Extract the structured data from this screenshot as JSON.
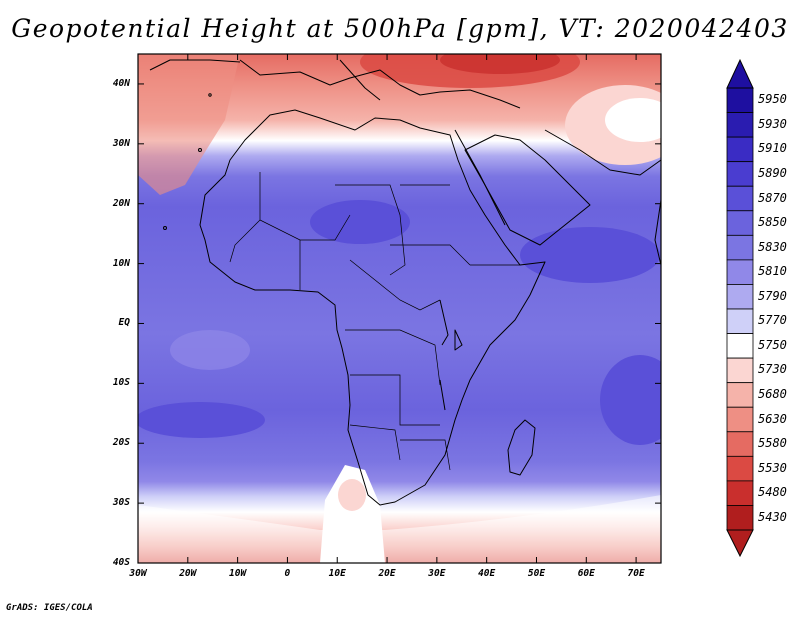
{
  "title": "Geopotential Height at 500hPa [gpm], VT: 2020042403",
  "credit": "GrADS: IGES/COLA",
  "map": {
    "variable": "Geopotential Height",
    "level": "500hPa",
    "units": "gpm",
    "valid_time": "2020042403",
    "lon_range": [
      -30,
      75
    ],
    "lat_range": [
      -40,
      45
    ],
    "lat_ticks": [
      "40N",
      "30N",
      "20N",
      "10N",
      "EQ",
      "10S",
      "20S",
      "30S",
      "40S"
    ],
    "lat_values": [
      40,
      30,
      20,
      10,
      0,
      -10,
      -20,
      -30,
      -40
    ],
    "lon_ticks": [
      "30W",
      "20W",
      "10W",
      "0",
      "10E",
      "20E",
      "30E",
      "40E",
      "50E",
      "60E",
      "70E"
    ],
    "lon_values": [
      -30,
      -20,
      -10,
      0,
      10,
      20,
      30,
      40,
      50,
      60,
      70
    ]
  },
  "colorbar": {
    "levels": [
      "5950",
      "5930",
      "5910",
      "5890",
      "5870",
      "5850",
      "5830",
      "5810",
      "5790",
      "5770",
      "5750",
      "5730",
      "5680",
      "5630",
      "5580",
      "5530",
      "5480",
      "5430"
    ],
    "colors": [
      "#1e0fa0",
      "#2a1cb0",
      "#3a2cc4",
      "#4a3dd0",
      "#5a50d8",
      "#6b63dd",
      "#7b75e2",
      "#9088e8",
      "#aeaaf0",
      "#cfd0f8",
      "#ffffff",
      "#fbd6d2",
      "#f5b3aa",
      "#ee8f84",
      "#e56b62",
      "#db4a43",
      "#c92f2d",
      "#b01e1e"
    ]
  }
}
